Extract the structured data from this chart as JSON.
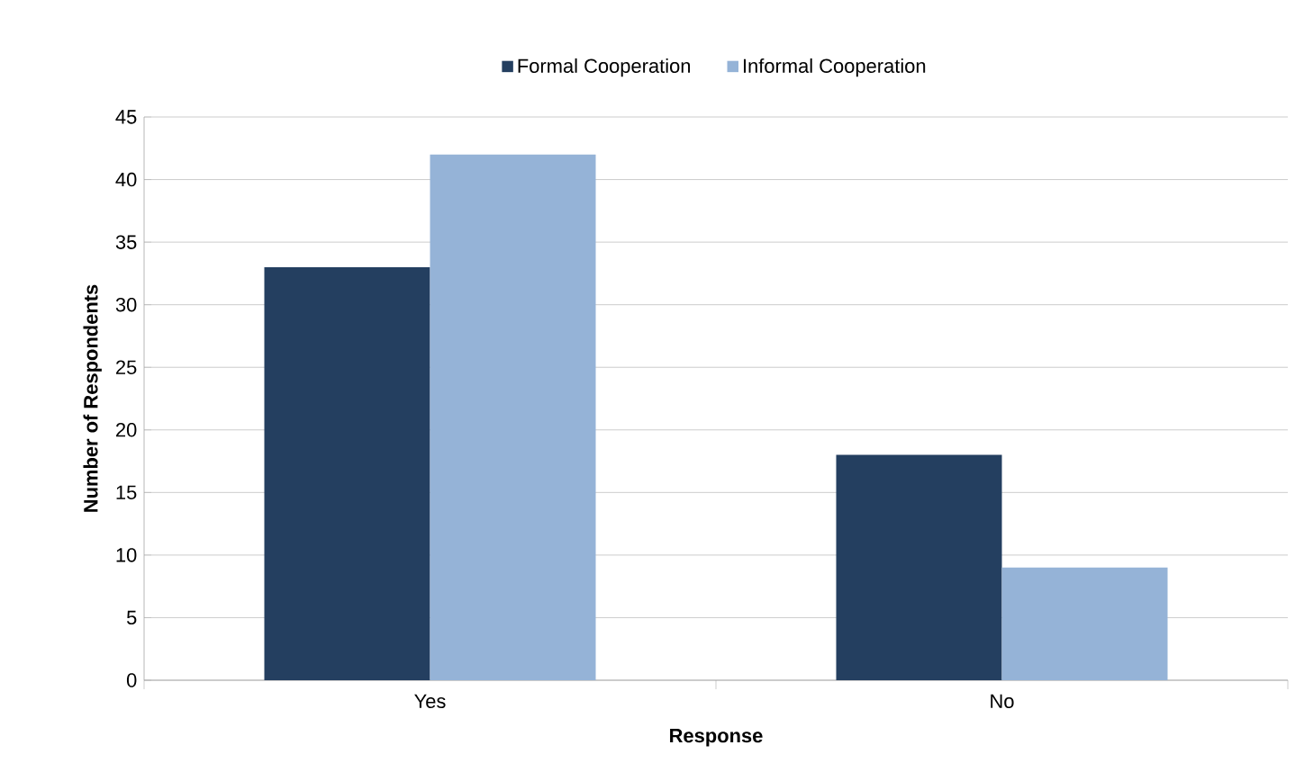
{
  "chart_data": {
    "type": "bar",
    "xlabel": "Response",
    "ylabel": "Number of Respondents",
    "categories": [
      "Yes",
      "No"
    ],
    "series": [
      {
        "name": "Formal Cooperation",
        "color": "#243f60",
        "values": [
          33,
          18
        ]
      },
      {
        "name": "Informal Cooperation",
        "color": "#95b3d7",
        "values": [
          42,
          9
        ]
      }
    ],
    "ylim": [
      0,
      45
    ],
    "yticks": [
      0,
      5,
      10,
      15,
      20,
      25,
      30,
      35,
      40,
      45
    ],
    "grid": "y",
    "legend": "top"
  }
}
